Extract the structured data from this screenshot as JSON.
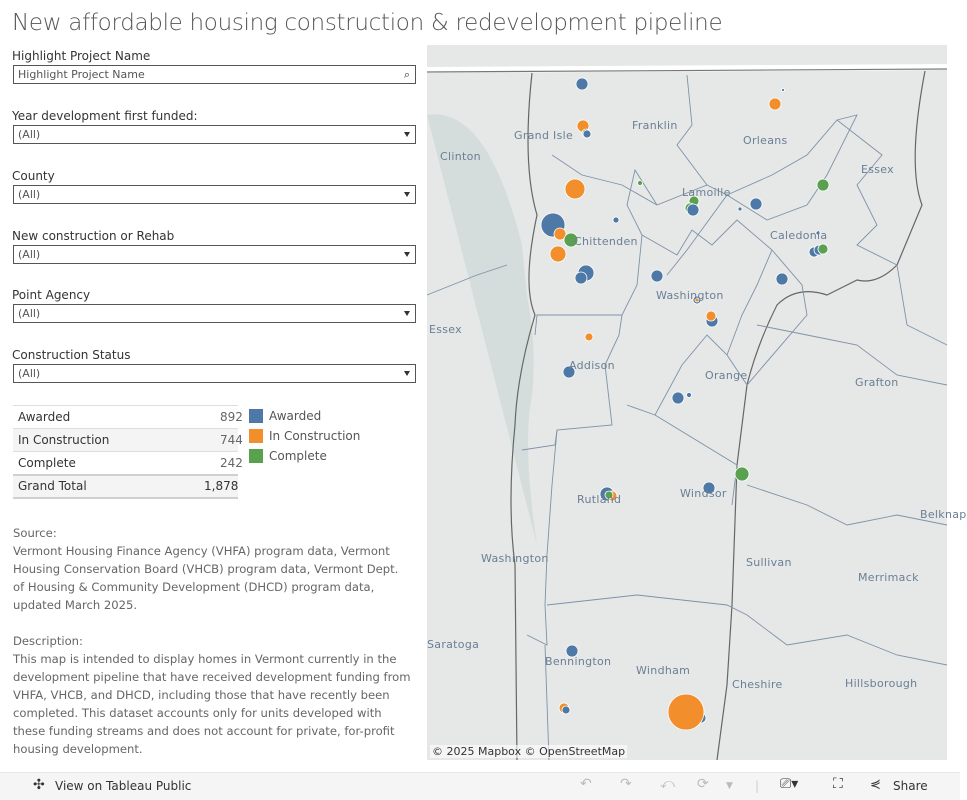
{
  "title": "New affordable housing construction & redevelopment pipeline",
  "filters": {
    "highlight": {
      "label": "Highlight Project Name",
      "placeholder": "Highlight Project Name"
    },
    "year": {
      "label": "Year development first funded:",
      "value": "(All)"
    },
    "county": {
      "label": "County",
      "value": "(All)"
    },
    "type": {
      "label": "New construction or Rehab",
      "value": "(All)"
    },
    "agency": {
      "label": "Point Agency",
      "value": "(All)"
    },
    "status": {
      "label": "Construction Status",
      "value": "(All)"
    }
  },
  "totals": [
    {
      "label": "Awarded",
      "value": "892"
    },
    {
      "label": "In Construction",
      "value": "744"
    },
    {
      "label": "Complete",
      "value": "242"
    },
    {
      "label": "Grand Total",
      "value": "1,878"
    }
  ],
  "legend": [
    {
      "label": "Awarded",
      "color": "#4e79a7"
    },
    {
      "label": "In Construction",
      "color": "#f28e2b"
    },
    {
      "label": "Complete",
      "color": "#59a14f"
    }
  ],
  "notes": {
    "source_heading": "Source:",
    "source": "Vermont Housing Finance Agency (VHFA) program data, Vermont Housing Conservation Board (VHCB) program data, Vermont Dept. of Housing & Community Development (DHCD) program data, updated March 2025.",
    "description_heading": "Description:",
    "description": "This map is intended to display homes in Vermont currently in the development pipeline that have received development funding from VHFA, VHCB, and DHCD, including those that have recently been completed. This dataset accounts only for units developed with these funding streams and does not account for private, for-profit housing development."
  },
  "map": {
    "labels": [
      "Franklin",
      "Grand Isle",
      "Clinton",
      "Orleans",
      "Essex",
      "Lamoille",
      "Caledonia",
      "Chittenden",
      "Washington",
      "Essex",
      "Addison",
      "Orange",
      "Grafton",
      "Rutland",
      "Windsor",
      "Washington",
      "Sullivan",
      "Merrimack",
      "Belknap",
      "Bennington",
      "Windham",
      "Cheshire",
      "Hillsborough",
      "Saratoga"
    ],
    "attribution": "© 2025 Mapbox  © OpenStreetMap"
  },
  "toolbar": {
    "view_on": "View on Tableau Public",
    "share": "Share"
  }
}
